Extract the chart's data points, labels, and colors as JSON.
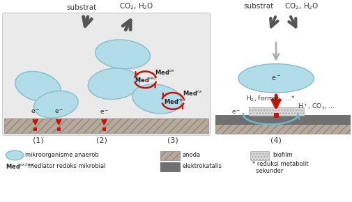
{
  "cell_color": "#b0dde8",
  "cell_edge": "#88bbcc",
  "anoda_color": "#b8a898",
  "biofilm_color": "#d0d0d0",
  "elektrokatalis_color": "#707070",
  "arrow_gray_dark": "#666666",
  "arrow_gray_light": "#aaaaaa",
  "arrow_red": "#cc1100",
  "panel_bg": "#e8e8e8",
  "panel_edge": "#cccccc",
  "labels": {
    "substrat_left": "substrat",
    "co2_h2o_left": "CO$_2$, H$_2$O",
    "substrat_right": "substrat",
    "co2_h2o_right": "CO$_2$, H$_2$O",
    "e_minus": "e$^-$",
    "med_ox1": "Med$^{ox}$",
    "med_red1": "Med$^{red}$",
    "med_ox2": "Med$^{ox}$",
    "med_red2": "Med$^{red}$",
    "h2_format": "H$_2$, format , ...*",
    "h_co2": "H$^+$, CO$_2$, ...",
    "panel1": "(1)",
    "panel2": "(2)",
    "panel3": "(3)",
    "panel4": "(4)",
    "legend_cell": "mikroorganisme anaerob",
    "legend_med_label": "Med$^{ox/red}$",
    "legend_med_text": " mediator redoks mikrobial",
    "legend_anoda": "anoda",
    "legend_biofilm": "biofilm",
    "legend_elektrokatalis": "elektrokatalis",
    "legend_reduksi": "* reduksi metabolit\n  sekunder"
  }
}
